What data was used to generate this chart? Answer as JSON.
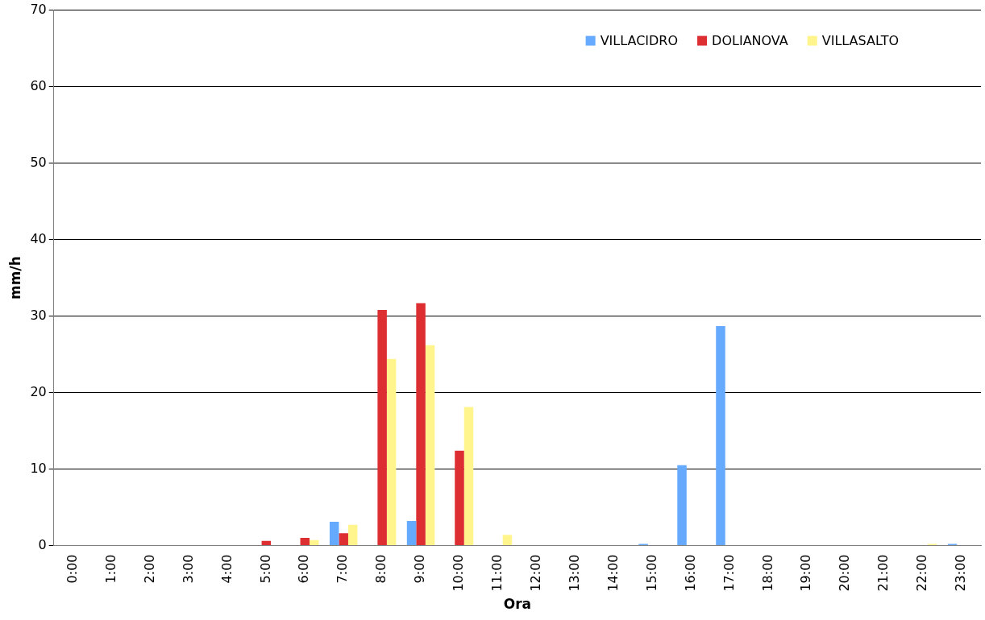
{
  "chart_data": {
    "type": "bar",
    "xlabel": "Ora",
    "ylabel": "mm/h",
    "categories": [
      "0:00",
      "1:00",
      "2:00",
      "3:00",
      "4:00",
      "5:00",
      "6:00",
      "7:00",
      "8:00",
      "9:00",
      "10:00",
      "11:00",
      "12:00",
      "13:00",
      "14:00",
      "15:00",
      "16:00",
      "17:00",
      "18:00",
      "19:00",
      "20:00",
      "21:00",
      "22:00",
      "23:00"
    ],
    "series": [
      {
        "name": "VILLACIDRO",
        "color": "#66aaff",
        "values": [
          0,
          0,
          0,
          0,
          0,
          0,
          0,
          3.1,
          0,
          3.2,
          0,
          0,
          0,
          0,
          0,
          0.2,
          10.5,
          28.7,
          0,
          0,
          0,
          0,
          0,
          0.2
        ]
      },
      {
        "name": "DOLIANOVA",
        "color": "#dd2e31",
        "values": [
          0,
          0,
          0,
          0,
          0,
          0.6,
          1.0,
          1.6,
          30.8,
          31.7,
          12.4,
          0,
          0,
          0,
          0,
          0,
          0,
          0,
          0,
          0,
          0,
          0,
          0,
          0
        ]
      },
      {
        "name": "VILLASALTO",
        "color": "#fff58c",
        "values": [
          0,
          0,
          0,
          0,
          0,
          0,
          0.7,
          2.7,
          24.4,
          26.2,
          18.1,
          1.4,
          0,
          0,
          0,
          0,
          0,
          0,
          0,
          0,
          0,
          0,
          0.2,
          0
        ]
      }
    ],
    "ylim": [
      0,
      70
    ],
    "yticks": [
      0,
      10,
      20,
      30,
      40,
      50,
      60,
      70
    ],
    "grid": "y",
    "legend": "top right"
  }
}
